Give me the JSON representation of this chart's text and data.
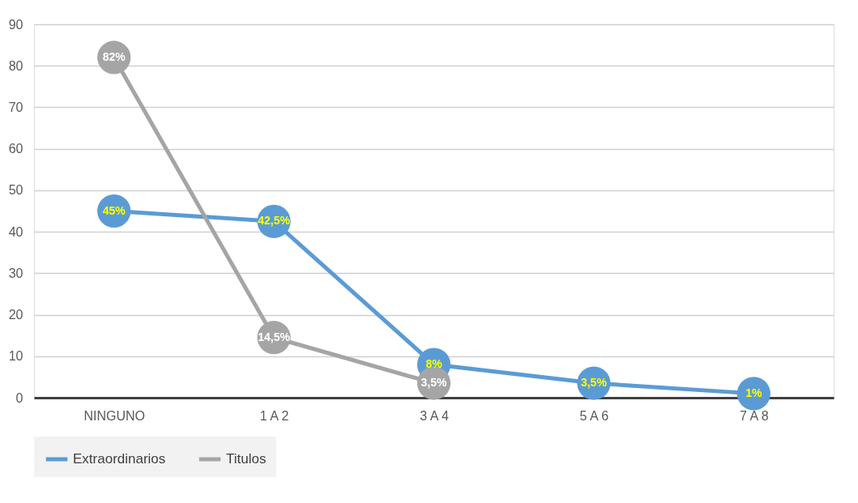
{
  "chart_data": {
    "type": "line",
    "categories": [
      "NINGUNO",
      "1 A 2",
      "3 A 4",
      "5 A 6",
      "7 A 8"
    ],
    "series": [
      {
        "name": "Extraordinarios",
        "color": "#5b9bd5",
        "values": [
          45,
          42.5,
          8,
          3.5,
          1
        ],
        "value_labels": [
          "45%",
          "42,5%",
          "8%",
          "3,5%",
          "1%"
        ]
      },
      {
        "name": "Titulos",
        "color": "#a5a5a5",
        "values": [
          82,
          14.5,
          3.5,
          null,
          null
        ],
        "value_labels": [
          "82%",
          "14,5%",
          "3,5%",
          null,
          null
        ]
      }
    ],
    "ylim": [
      0,
      90
    ],
    "yticks": [
      0,
      10,
      20,
      30,
      40,
      50,
      60,
      70,
      80,
      90
    ],
    "grid": "y",
    "legend": "bottom",
    "marker": "circle",
    "line_style": "solid"
  }
}
